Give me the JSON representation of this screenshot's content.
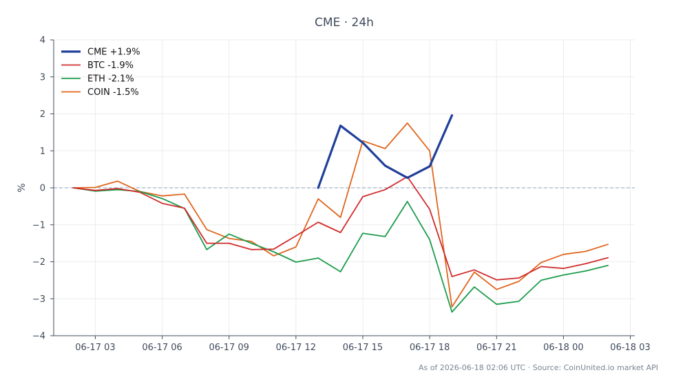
{
  "chart_data": {
    "type": "line",
    "title": "CME · 24h",
    "xlabel": "",
    "ylabel": "%",
    "ylim": [
      -4,
      4
    ],
    "yticks": [
      4,
      3,
      2,
      1,
      0,
      -1,
      -2,
      -3,
      -4
    ],
    "ytick_labels": [
      "4",
      "3",
      "2",
      "1",
      "0",
      "−1",
      "−2",
      "−3",
      "−4"
    ],
    "xlim": [
      "06-17 01:08",
      "06-18 03:12"
    ],
    "xticks": [
      "06-17 03:00",
      "06-17 06:00",
      "06-17 09:00",
      "06-17 12:00",
      "06-17 15:00",
      "06-17 18:00",
      "06-17 21:00",
      "06-18 00:00",
      "06-18 03:00"
    ],
    "xtick_labels": [
      "06-17 03",
      "06-17 06",
      "06-17 09",
      "06-17 12",
      "06-17 15",
      "06-17 18",
      "06-17 21",
      "06-18 00",
      "06-18 03"
    ],
    "grid": true,
    "legend_position": "top-left",
    "zero_line": true,
    "x": [
      "06-17 02:00",
      "06-17 03:00",
      "06-17 04:00",
      "06-17 05:00",
      "06-17 06:00",
      "06-17 07:00",
      "06-17 08:00",
      "06-17 09:00",
      "06-17 10:00",
      "06-17 11:00",
      "06-17 12:00",
      "06-17 13:00",
      "06-17 14:00",
      "06-17 15:00",
      "06-17 16:00",
      "06-17 17:00",
      "06-17 18:00",
      "06-17 19:00",
      "06-17 20:00",
      "06-17 21:00",
      "06-17 22:00",
      "06-17 23:00",
      "06-18 00:00",
      "06-18 01:00",
      "06-18 02:00"
    ],
    "series": [
      {
        "name": "CME +1.9%",
        "color": "#1f3f99",
        "width": 3.2,
        "values": [
          null,
          null,
          null,
          null,
          null,
          null,
          null,
          null,
          null,
          null,
          null,
          0.0,
          1.68,
          1.22,
          0.6,
          0.27,
          0.58,
          1.96,
          null,
          null,
          null,
          null,
          null,
          null,
          null
        ]
      },
      {
        "name": "BTC -1.9%",
        "color": "#d02b2b",
        "width": 1.8,
        "values": [
          0.0,
          -0.07,
          -0.02,
          -0.12,
          -0.42,
          -0.55,
          -1.5,
          -1.5,
          -1.67,
          -1.66,
          -1.3,
          -0.93,
          -1.21,
          -0.24,
          -0.05,
          0.3,
          -0.58,
          -2.4,
          -2.22,
          -2.49,
          -2.44,
          -2.13,
          -2.18,
          -2.05,
          -1.89
        ]
      },
      {
        "name": "ETH -2.1%",
        "color": "#1a9b4b",
        "width": 1.8,
        "values": [
          0.0,
          -0.09,
          -0.05,
          -0.1,
          -0.29,
          -0.56,
          -1.67,
          -1.25,
          -1.5,
          -1.73,
          -2.01,
          -1.9,
          -2.27,
          -1.23,
          -1.32,
          -0.37,
          -1.4,
          -3.36,
          -2.68,
          -3.15,
          -3.07,
          -2.5,
          -2.36,
          -2.25,
          -2.1
        ]
      },
      {
        "name": "COIN -1.5%",
        "color": "#e0651d",
        "width": 1.8,
        "values": [
          0.0,
          0.01,
          0.18,
          -0.1,
          -0.22,
          -0.17,
          -1.13,
          -1.37,
          -1.45,
          -1.84,
          -1.6,
          -0.3,
          -0.8,
          1.27,
          1.06,
          1.75,
          1.0,
          -3.22,
          -2.28,
          -2.75,
          -2.53,
          -2.02,
          -1.8,
          -1.72,
          -1.53
        ]
      }
    ]
  },
  "footer": "As of 2026-06-18 02:06 UTC · Source: CoinUnited.io market API"
}
